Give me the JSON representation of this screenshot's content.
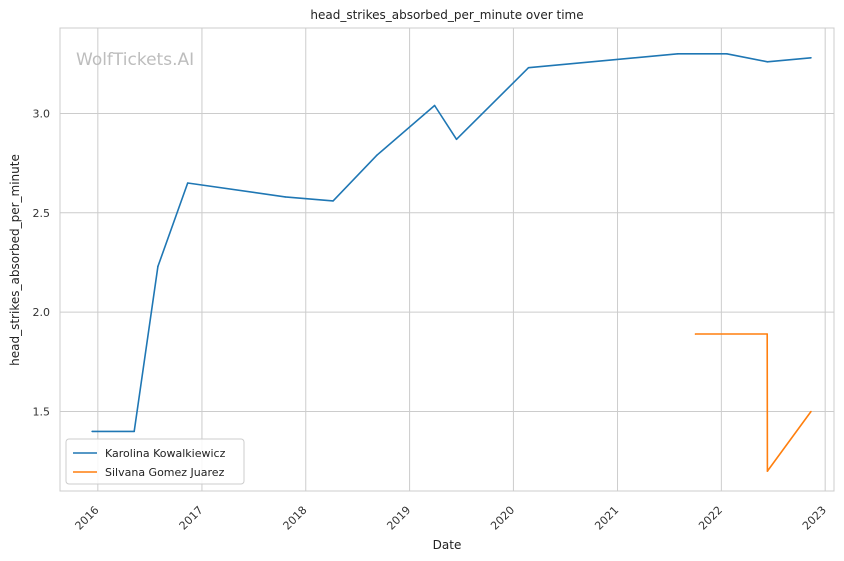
{
  "chart_data": {
    "type": "line",
    "title": "head_strikes_absorbed_per_minute over time",
    "xlabel": "Date",
    "ylabel": "head_strikes_absorbed_per_minute",
    "watermark": "WolfTickets.AI",
    "x_ticks": [
      "2016",
      "2017",
      "2018",
      "2019",
      "2020",
      "2021",
      "2022",
      "2023"
    ],
    "y_ticks": [
      "1.5",
      "2.0",
      "2.5",
      "3.0"
    ],
    "xlim": [
      "2015-08-21",
      "2023-02-01"
    ],
    "ylim": [
      1.1,
      3.43
    ],
    "grid": true,
    "legend_position": "lower-left",
    "series": [
      {
        "name": "Karolina Kowalkiewicz",
        "color": "#1f77b4",
        "points": [
          {
            "x": "2015-12-12",
            "y": 1.4
          },
          {
            "x": "2016-05-08",
            "y": 1.4
          },
          {
            "x": "2016-07-30",
            "y": 2.23
          },
          {
            "x": "2016-11-12",
            "y": 2.65
          },
          {
            "x": "2017-10-21",
            "y": 2.58
          },
          {
            "x": "2018-04-07",
            "y": 2.56
          },
          {
            "x": "2018-09-08",
            "y": 2.79
          },
          {
            "x": "2019-03-30",
            "y": 3.04
          },
          {
            "x": "2019-06-15",
            "y": 2.87
          },
          {
            "x": "2020-02-23",
            "y": 3.23
          },
          {
            "x": "2021-08-01",
            "y": 3.3
          },
          {
            "x": "2022-01-20",
            "y": 3.3
          },
          {
            "x": "2022-06-12",
            "y": 3.26
          },
          {
            "x": "2022-11-12",
            "y": 3.28
          }
        ]
      },
      {
        "name": "Silvana Gomez Juarez",
        "color": "#ff7f0e",
        "points": [
          {
            "x": "2021-10-02",
            "y": 1.89
          },
          {
            "x": "2022-06-11",
            "y": 1.89
          },
          {
            "x": "2022-06-12",
            "y": 1.2
          },
          {
            "x": "2022-11-12",
            "y": 1.5
          }
        ]
      }
    ]
  }
}
